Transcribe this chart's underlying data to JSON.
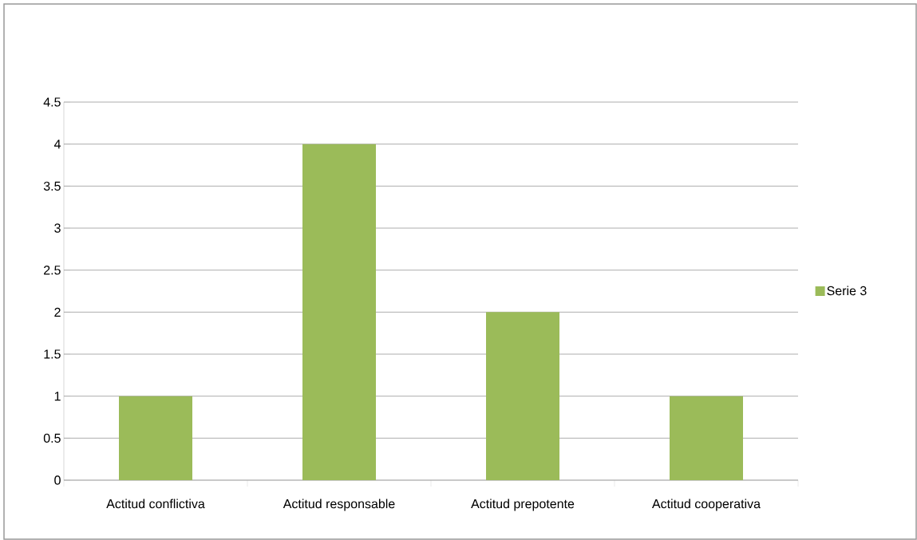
{
  "chart_data": {
    "type": "bar",
    "categories": [
      "Actitud conflictiva",
      "Actitud responsable",
      "Actitud prepotente",
      "Actitud cooperativa"
    ],
    "series": [
      {
        "name": "Serie 3",
        "color": "#9bbb59",
        "values": [
          1,
          4,
          2,
          1
        ]
      }
    ],
    "ylim": [
      0,
      4.5
    ],
    "yticks": [
      0,
      0.5,
      1,
      1.5,
      2,
      2.5,
      3,
      3.5,
      4,
      4.5
    ],
    "grid": "y",
    "legend": "right"
  }
}
